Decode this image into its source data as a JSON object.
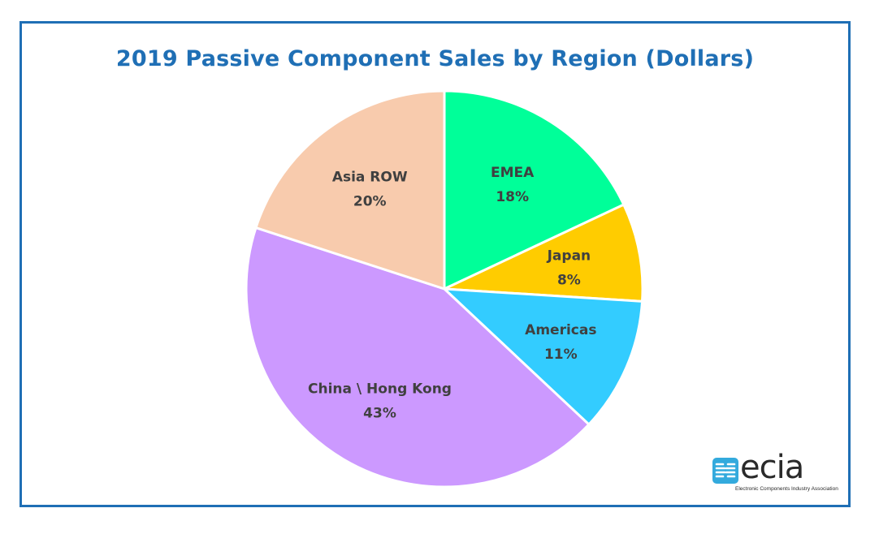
{
  "chart_data": {
    "type": "pie",
    "title": "2019 Passive Component Sales by Region (Dollars)",
    "slices": [
      {
        "label": "EMEA",
        "value": 18,
        "value_label": "18%",
        "color": "#00ff99"
      },
      {
        "label": "Japan",
        "value": 8,
        "value_label": "8%",
        "color": "#ffcc00"
      },
      {
        "label": "Americas",
        "value": 11,
        "value_label": "11%",
        "color": "#33ccff"
      },
      {
        "label": "China \\ Hong Kong",
        "value": 43,
        "value_label": "43%",
        "color": "#cc99ff"
      },
      {
        "label": "Asia ROW",
        "value": 20,
        "value_label": "20%",
        "color": "#f8cbad"
      }
    ],
    "start_angle_deg": 0,
    "direction": "clockwise"
  },
  "logo": {
    "name": "ecia",
    "tagline": "Electronic Components Industry Association",
    "color": "#33aadd"
  },
  "colors": {
    "frame": "#1f6fb5",
    "title": "#1f6fb5"
  }
}
